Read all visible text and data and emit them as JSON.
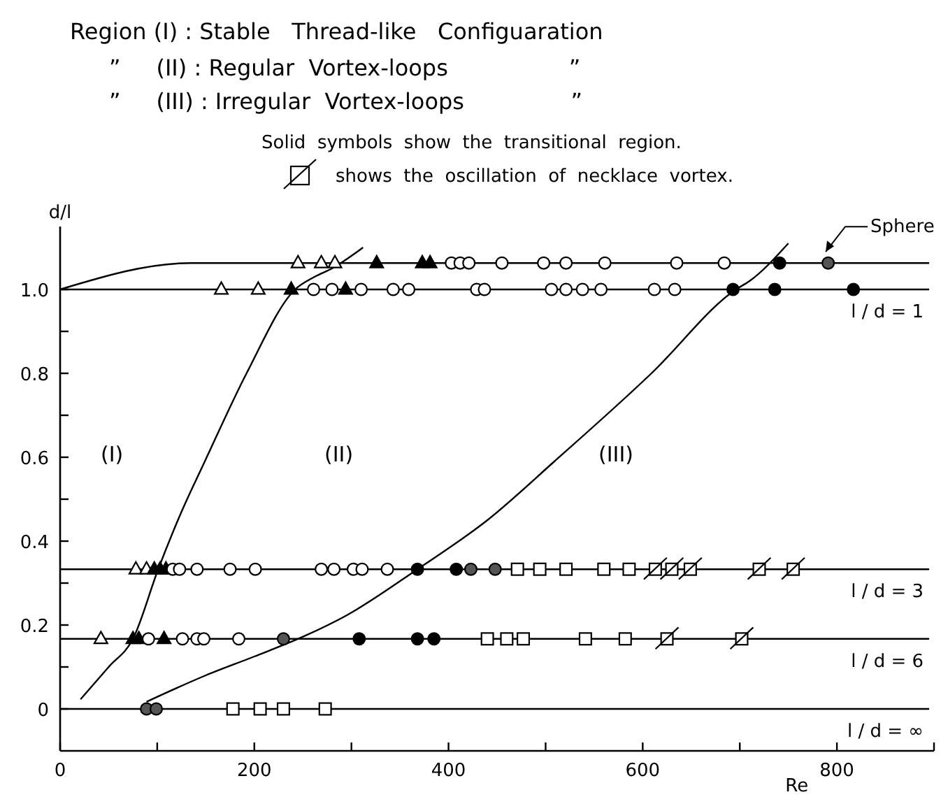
{
  "chart_data": {
    "type": "scatter",
    "xlabel": "Re",
    "ylabel": "d/l",
    "xlim": [
      0,
      900
    ],
    "ylim": [
      -0.1,
      1.15
    ],
    "xticks": [
      0,
      {
        "value": 100,
        "label": null
      },
      200,
      {
        "value": 300,
        "label": null
      },
      400,
      {
        "value": 500,
        "label": null
      },
      600,
      {
        "value": 700,
        "label": null
      },
      800,
      {
        "value": 900,
        "label": null
      }
    ],
    "yticks": [
      0,
      {
        "value": 0.1,
        "label": null
      },
      0.2,
      {
        "value": 0.3,
        "label": null
      },
      0.4,
      {
        "value": 0.5,
        "label": null
      },
      0.6,
      {
        "value": 0.7,
        "label": null
      },
      0.8,
      {
        "value": 0.9,
        "label": null
      },
      {
        "value": 1,
        "label": "1.0"
      }
    ],
    "annotations": [
      "Region (I) : Stable   Thread-like   Configuaration",
      "”     (II) : Regular  Vortex-loops                 ”",
      "”     (III) : Irregular  Vortex-loops               ”",
      "Solid  symbols  show  the  transitional  region.",
      "shows  the  oscillation  of  necklace  vortex.",
      "(I)",
      "(II)",
      "(III)"
    ],
    "series": [
      {
        "type": "line",
        "name": "Sphere",
        "color": "#000000",
        "marker": "none",
        "x": [
          0,
          135,
          895
        ],
        "values": [
          1.0,
          1.063,
          1.063
        ]
      },
      {
        "type": "line",
        "name": "l / d = 1",
        "color": "#000000",
        "marker": "none",
        "x": [
          0,
          895
        ],
        "values": [
          1.0,
          1.0
        ]
      },
      {
        "type": "line",
        "name": "l / d = 3",
        "color": "#000000",
        "marker": "none",
        "x": [
          0,
          895
        ],
        "values": [
          0.333,
          0.333
        ]
      },
      {
        "type": "line",
        "name": "l / d = 6",
        "color": "#000000",
        "marker": "none",
        "x": [
          0,
          895
        ],
        "values": [
          0.167,
          0.167
        ]
      },
      {
        "type": "line",
        "name": "l / d = ∞",
        "color": "#000000",
        "marker": "none",
        "x": [
          0,
          895
        ],
        "values": [
          0,
          0
        ]
      },
      {
        "type": "line",
        "color": "#000000",
        "marker": "none",
        "x": [
          21,
          50,
          75,
          101,
          125,
          149,
          192,
          242,
          262,
          280,
          312
        ],
        "values": [
          0.023,
          0.1,
          0.167,
          0.333,
          0.47,
          0.59,
          0.8,
          1.0,
          1.03,
          1.05,
          1.1
        ]
      },
      {
        "type": "line",
        "color": "#000000",
        "marker": "none",
        "x": [
          89,
          150,
          200,
          251,
          295,
          368,
          440,
          509,
          609,
          696,
          710,
          750
        ],
        "values": [
          0.017,
          0.08,
          0.125,
          0.173,
          0.223,
          0.333,
          0.45,
          0.59,
          0.8,
          1.0,
          1.02,
          1.11
        ]
      },
      {
        "marker": "triangle",
        "color": "#ffffff",
        "x": [
          245,
          269,
          283,
          166,
          204,
          78,
          89,
          42
        ],
        "values": [
          1.063,
          1.063,
          1.063,
          1.0,
          1.0,
          0.333,
          0.333,
          0.167
        ]
      },
      {
        "marker": "triangle",
        "color": "#000000",
        "x": [
          326,
          373,
          381,
          238,
          294,
          97,
          103,
          109,
          75,
          81,
          107
        ],
        "values": [
          1.063,
          1.063,
          1.063,
          1.0,
          1.0,
          0.333,
          0.333,
          0.333,
          0.167,
          0.167,
          0.167
        ]
      },
      {
        "marker": "circle",
        "color": "#ffffff",
        "x": [
          403,
          412,
          421,
          455,
          498,
          521,
          561,
          635,
          684,
          261,
          280,
          310,
          343,
          359,
          429,
          437,
          506,
          521,
          538,
          557,
          612,
          633,
          116,
          123,
          141,
          175,
          201,
          269,
          282,
          302,
          311,
          337,
          91,
          126,
          141,
          148,
          184
        ],
        "values": [
          1.063,
          1.063,
          1.063,
          1.063,
          1.063,
          1.063,
          1.063,
          1.063,
          1.063,
          1.0,
          1.0,
          1.0,
          1.0,
          1.0,
          1.0,
          1.0,
          1.0,
          1.0,
          1.0,
          1.0,
          1.0,
          1.0,
          0.333,
          0.333,
          0.333,
          0.333,
          0.333,
          0.333,
          0.333,
          0.333,
          0.333,
          0.333,
          0.167,
          0.167,
          0.167,
          0.167,
          0.167
        ]
      },
      {
        "marker": "circle",
        "color": "#000000",
        "x": [
          741,
          693,
          736,
          817,
          368,
          408,
          308,
          368,
          385
        ],
        "values": [
          1.063,
          1.0,
          1.0,
          1.0,
          0.333,
          0.333,
          0.167,
          0.167,
          0.167
        ]
      },
      {
        "marker": "circle",
        "color": "#555555",
        "x": [
          791,
          423,
          448,
          230,
          89,
          99
        ],
        "values": [
          1.063,
          0.333,
          0.333,
          0.167,
          0,
          0
        ]
      },
      {
        "marker": "square",
        "color": "#ffffff",
        "x": [
          471,
          494,
          521,
          560,
          586,
          440,
          460,
          477,
          541,
          582,
          178,
          206,
          230,
          273
        ],
        "values": [
          0.333,
          0.333,
          0.333,
          0.333,
          0.333,
          0.167,
          0.167,
          0.167,
          0.167,
          0.167,
          0,
          0,
          0,
          0
        ]
      },
      {
        "marker": "square",
        "line_style": "solid",
        "color": "#ffffff",
        "x": [
          613,
          630,
          649,
          720,
          755,
          625,
          702
        ],
        "values": [
          0.333,
          0.333,
          0.333,
          0.333,
          0.333,
          0.167,
          0.167
        ]
      }
    ]
  }
}
